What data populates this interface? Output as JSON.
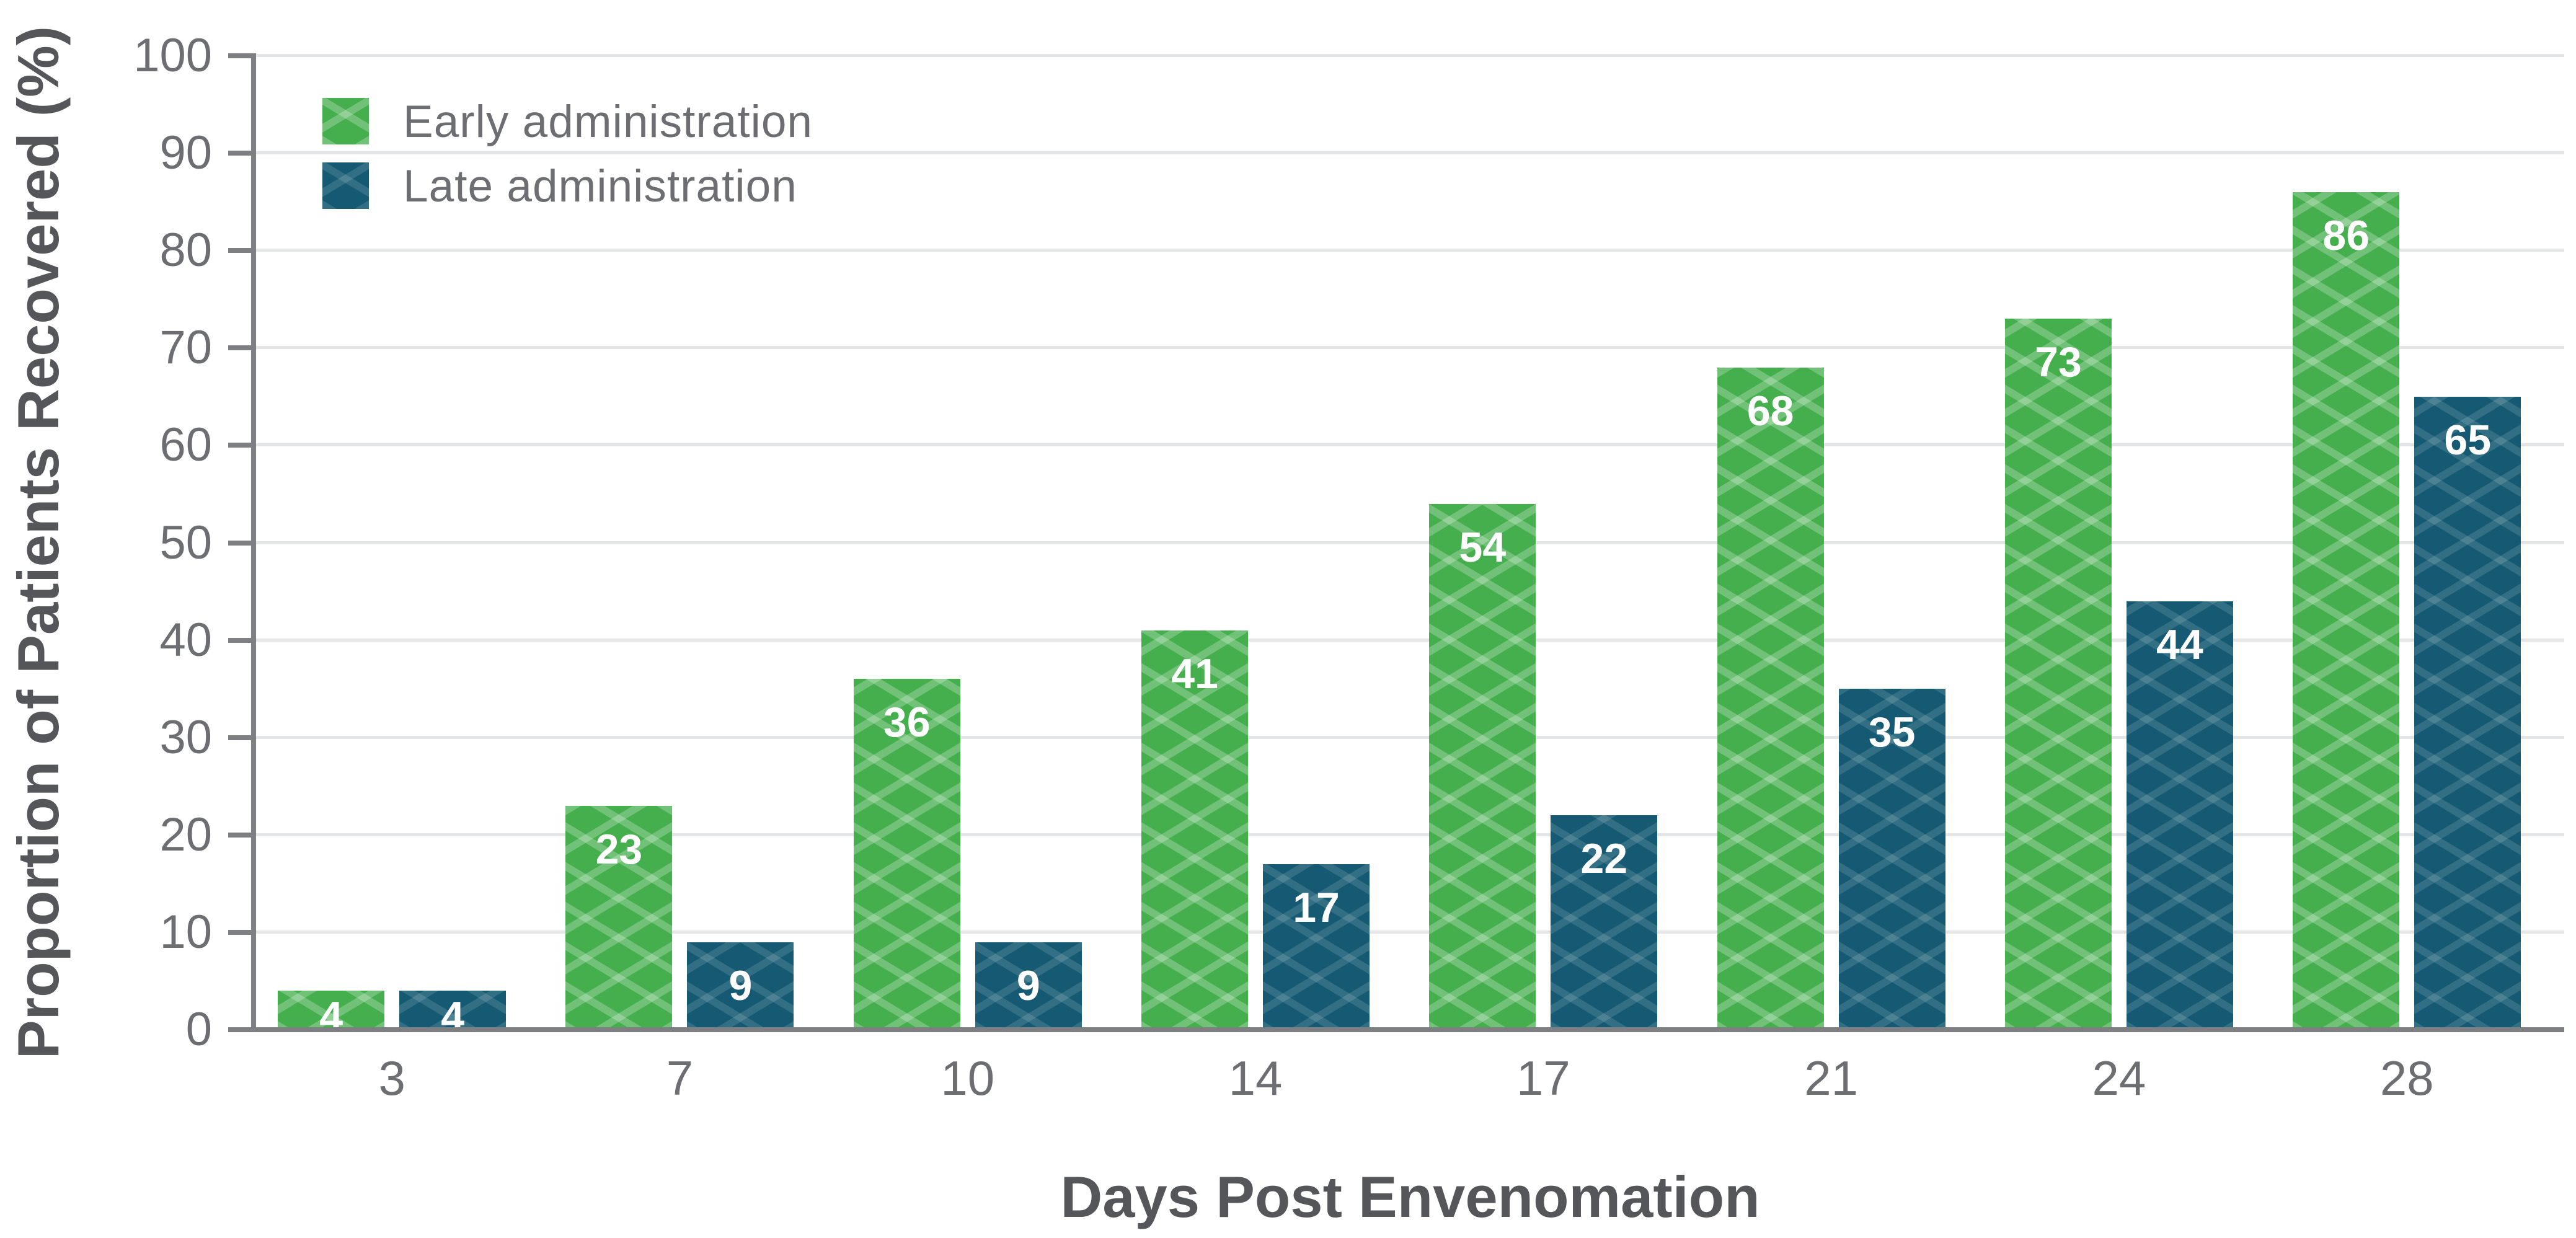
{
  "palette": {
    "early_green": "#45af4d",
    "late_teal": "#155a72",
    "axis_line": "#7d7f82",
    "gridline": "#e4e5e7",
    "tick_text": "#6d6e71",
    "title_text": "#55565a",
    "value_label_text": "#ffffff"
  },
  "legend": {
    "items": [
      {
        "label": "Early administration",
        "color": "#45af4d"
      },
      {
        "label": "Late administration",
        "color": "#155a72"
      }
    ]
  },
  "chart_data": {
    "type": "bar",
    "title": "",
    "xlabel": "Days Post Envenomation",
    "ylabel": "Proportion of Patients Recovered (%)",
    "categories": [
      "3",
      "7",
      "10",
      "14",
      "17",
      "21",
      "24",
      "28"
    ],
    "series": [
      {
        "name": "Early administration",
        "color": "#45af4d",
        "values": [
          4,
          23,
          36,
          41,
          54,
          68,
          73,
          86
        ]
      },
      {
        "name": "Late administration",
        "color": "#155a72",
        "values": [
          4,
          9,
          9,
          17,
          22,
          35,
          44,
          65
        ]
      }
    ],
    "value_labels": true,
    "ylim": [
      0,
      100
    ],
    "ytick_step": 10,
    "ytick_labels": [
      "0",
      "10",
      "20",
      "30",
      "40",
      "50",
      "60",
      "70",
      "80",
      "90",
      "100"
    ],
    "grid": true,
    "grid_orientation": "horizontal",
    "legend_position": "top-left",
    "bar_texture": "diamond-lattice"
  }
}
